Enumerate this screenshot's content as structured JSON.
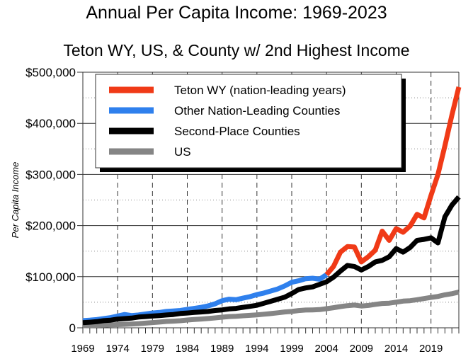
{
  "chart_data": {
    "type": "line",
    "title": "Annual Per Capita Income: 1969-2023",
    "subtitle": "Teton WY, US, & County w/ 2nd Highest Income",
    "xlabel": "",
    "ylabel": "Per Capita Income",
    "xlim": [
      1969,
      2023
    ],
    "ylim": [
      0,
      500000
    ],
    "x_ticks": [
      "1969",
      "1974",
      "1979",
      "1984",
      "1989",
      "1994",
      "1999",
      "2004",
      "2009",
      "2014",
      "2019"
    ],
    "y_ticks": [
      {
        "value": 0,
        "label": "0"
      },
      {
        "value": 100000,
        "label": "$100,000"
      },
      {
        "value": 200000,
        "label": "$200,000"
      },
      {
        "value": 300000,
        "label": "$300,000"
      },
      {
        "value": 400000,
        "label": "$400,000"
      },
      {
        "value": 500000,
        "label": "$500,000"
      }
    ],
    "grid": {
      "horizontal_major": "solid",
      "horizontal_minor": "dotted",
      "vertical": "dashed"
    },
    "legend_position": "top-left",
    "series": [
      {
        "name": "Teton WY (nation-leading years)",
        "color": "#f03a17",
        "x_start": 2004,
        "values": [
          104000,
          120000,
          148000,
          159000,
          158000,
          129000,
          139000,
          152000,
          189000,
          171000,
          194000,
          187000,
          199000,
          222000,
          215000,
          259000,
          300000,
          356000,
          416000,
          471000
        ]
      },
      {
        "name": "Other Nation-Leading Counties",
        "color": "#2f80ed",
        "x_start": 1969,
        "values": [
          14000,
          15000,
          16000,
          18000,
          20000,
          23000,
          26000,
          24000,
          25000,
          27000,
          29000,
          30000,
          32000,
          33000,
          34000,
          36000,
          38000,
          40000,
          43000,
          47000,
          53000,
          56000,
          55000,
          58000,
          61000,
          65000,
          68000,
          72000,
          76000,
          82000,
          89000,
          92000,
          96000,
          97000,
          95000,
          104000
        ]
      },
      {
        "name": "Second-Place Counties",
        "color": "#000000",
        "x_start": 1969,
        "values": [
          10000,
          11000,
          12000,
          14000,
          15000,
          17000,
          18000,
          19000,
          21000,
          22000,
          23000,
          24000,
          25000,
          26000,
          28000,
          29000,
          30000,
          31000,
          32000,
          34000,
          35000,
          37000,
          38000,
          40000,
          42000,
          44000,
          48000,
          52000,
          56000,
          60000,
          67000,
          75000,
          78000,
          80000,
          85000,
          90000,
          99000,
          111000,
          122000,
          120000,
          113000,
          120000,
          129000,
          132000,
          139000,
          155000,
          148000,
          157000,
          171000,
          173000,
          176000,
          166000,
          217000,
          240000,
          256000
        ]
      },
      {
        "name": "US",
        "color": "#858585",
        "x_start": 1969,
        "values": [
          4100,
          4400,
          4800,
          5200,
          5800,
          6300,
          6800,
          7500,
          8200,
          9200,
          10200,
          11200,
          12400,
          13000,
          13900,
          15300,
          16300,
          17200,
          18100,
          19400,
          20800,
          22000,
          22600,
          23600,
          24400,
          25400,
          26600,
          27900,
          29300,
          31000,
          32000,
          33800,
          34800,
          35000,
          35600,
          37400,
          39300,
          41500,
          43400,
          44400,
          42600,
          43800,
          45900,
          47600,
          48200,
          50100,
          52200,
          53000,
          55000,
          57200,
          59400,
          61400,
          64500,
          66700,
          69800
        ]
      }
    ]
  }
}
